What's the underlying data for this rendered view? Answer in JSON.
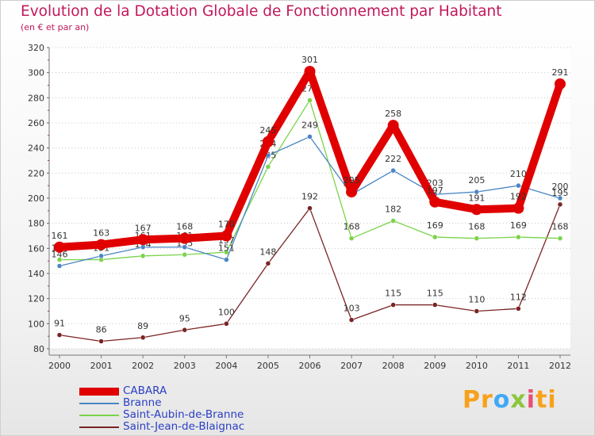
{
  "header": {
    "title": "Evolution de la Dotation Globale de Fonctionnement par Habitant",
    "subtitle": "(en € et par an)"
  },
  "logo": {
    "text": "Proxiti",
    "parts": [
      "Pr",
      "o",
      "x",
      "i",
      "ti"
    ]
  },
  "chart_data": {
    "type": "line",
    "title": "Evolution de la Dotation Globale de Fonctionnement par Habitant",
    "subtitle": "(en € et par an)",
    "xlabel": "",
    "ylabel": "",
    "ylim": [
      80,
      320
    ],
    "yticks": [
      80,
      100,
      120,
      140,
      160,
      180,
      200,
      220,
      240,
      260,
      280,
      300,
      320
    ],
    "categories": [
      "2000",
      "2001",
      "2002",
      "2003",
      "2004",
      "2005",
      "2006",
      "2007",
      "2008",
      "2009",
      "2010",
      "2011",
      "2012"
    ],
    "grid": "horizontal dotted",
    "legend": "bottom-left",
    "series": [
      {
        "name": "CABARA",
        "color": "#e00000",
        "emphasis": true,
        "values": [
          161,
          163,
          167,
          168,
          170,
          245,
          301,
          205,
          258,
          197,
          191,
          192,
          291
        ]
      },
      {
        "name": "Branne",
        "color": "#4a86c5",
        "values": [
          146,
          154,
          161,
          161,
          151,
          234,
          249,
          203,
          222,
          203,
          205,
          210,
          200
        ]
      },
      {
        "name": "Saint-Aubin-de-Branne",
        "color": "#7bd34a",
        "values": [
          151,
          151,
          154,
          155,
          157,
          225,
          278,
          168,
          182,
          169,
          168,
          169,
          168
        ]
      },
      {
        "name": "Saint-Jean-de-Blaignac",
        "color": "#7a2424",
        "values": [
          91,
          86,
          89,
          95,
          100,
          148,
          192,
          103,
          115,
          115,
          110,
          112,
          195
        ]
      }
    ]
  }
}
